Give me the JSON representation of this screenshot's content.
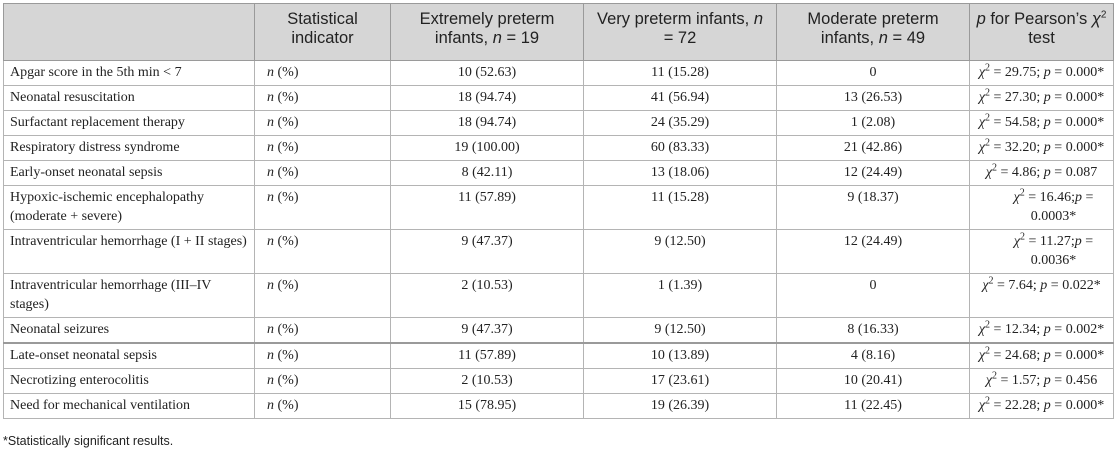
{
  "headers": [
    {
      "text": ""
    },
    {
      "text": "Statistical indicator"
    },
    {
      "pre": "Extremely preterm infants, ",
      "var": "n",
      "post": " = 19"
    },
    {
      "pre": "Very preterm infants, ",
      "var": "n",
      "post": " = 72"
    },
    {
      "pre": "Moderate preterm infants, ",
      "var": "n",
      "post": " = 49"
    },
    {
      "var": "p",
      "pre2": " for Pearson’s ",
      "var2": "χ",
      "sup": "2",
      "post": " test"
    }
  ],
  "rows": [
    {
      "name": "Apgar score in the 5th min < 7",
      "ind_var": "n",
      "ind_post": " (%)",
      "extreme": "10 (52.63)",
      "very": "11 (15.28)",
      "moderate": "0",
      "chi": "29.75",
      "p_sep": "; ",
      "p": "0.000*"
    },
    {
      "name": "Neonatal resuscitation",
      "ind_var": "n",
      "ind_post": " (%)",
      "extreme": "18 (94.74)",
      "very": "41 (56.94)",
      "moderate": "13 (26.53)",
      "chi": "27.30",
      "p_sep": "; ",
      "p": "0.000*"
    },
    {
      "name": "Surfactant replacement therapy",
      "ind_var": "n",
      "ind_post": " (%)",
      "extreme": "18 (94.74)",
      "very": "24 (35.29)",
      "moderate": "1 (2.08)",
      "chi": "54.58",
      "p_sep": "; ",
      "p": "0.000*"
    },
    {
      "name": "Respiratory distress syndrome",
      "ind_var": "n",
      "ind_post": " (%)",
      "extreme": "19 (100.00)",
      "very": "60 (83.33)",
      "moderate": "21 (42.86)",
      "chi": "32.20",
      "p_sep": "; ",
      "p": "0.000*"
    },
    {
      "name": "Early-onset neonatal sepsis",
      "ind_var": "n",
      "ind_post": " (%)",
      "extreme": "8 (42.11)",
      "very": "13 (18.06)",
      "moderate": "12 (24.49)",
      "chi": "4.86",
      "p_sep": "; ",
      "p": "0.087"
    },
    {
      "name": "Hypoxic-ischemic encephalopathy (moderate + severe)",
      "ind_var": "n",
      "ind_post": " (%)",
      "extreme": "11 (57.89)",
      "very": "11 (15.28)",
      "moderate": "9 (18.37)",
      "chi": "16.46",
      "p_sep": ";",
      "p": "0.0003*"
    },
    {
      "name": "Intraventricular hemorrhage (I + II stages)",
      "ind_var": "n",
      "ind_post": " (%)",
      "extreme": "9 (47.37)",
      "very": "9 (12.50)",
      "moderate": "12 (24.49)",
      "chi": "11.27",
      "p_sep": ";",
      "p": "0.0036*"
    },
    {
      "name": "Intraventricular hemorrhage (III–IV stages)",
      "ind_var": "n",
      "ind_post": " (%)",
      "extreme": "2 (10.53)",
      "very": "1 (1.39)",
      "moderate": "0",
      "chi": "7.64",
      "p_sep": "; ",
      "p": "0.022*"
    },
    {
      "name": "Neonatal seizures",
      "ind_var": "n",
      "ind_post": " (%)",
      "extreme": "9 (47.37)",
      "very": "9 (12.50)",
      "moderate": "8 (16.33)",
      "chi": "12.34",
      "p_sep": "; ",
      "p": "0.002*"
    },
    {
      "name": "Late-onset neonatal sepsis",
      "ind_var": "n",
      "ind_post": " (%)",
      "extreme": "11 (57.89)",
      "very": "10 (13.89)",
      "moderate": "4 (8.16)",
      "chi": "24.68",
      "p_sep": "; ",
      "p": "0.000*"
    },
    {
      "name": "Necrotizing enterocolitis",
      "ind_var": "n",
      "ind_post": " (%)",
      "extreme": "2 (10.53)",
      "very": "17 (23.61)",
      "moderate": "10 (20.41)",
      "chi": "1.57",
      "p_sep": "; ",
      "p": "0.456"
    },
    {
      "name": "Need for mechanical ventilation",
      "ind_var": "n",
      "ind_post": " (%)",
      "extreme": "15 (78.95)",
      "very": "19 (26.39)",
      "moderate": "11 (22.45)",
      "chi": "22.28",
      "p_sep": "; ",
      "p": "0.000*"
    }
  ],
  "stat_labels": {
    "chi_var": "χ",
    "chi_sup": "2",
    "eq": " = ",
    "p_var": "p"
  },
  "footnote": "*Statistically significant results."
}
